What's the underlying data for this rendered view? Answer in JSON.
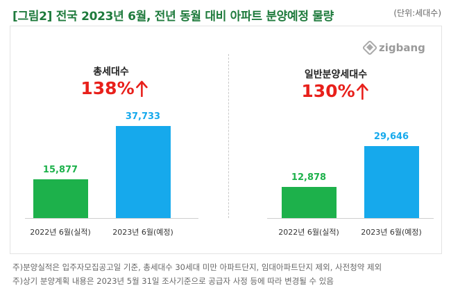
{
  "header": {
    "title": "[그림2] 전국 2023년 6월, 전년 동월 대비 아파트 분양예정 물량",
    "unit": "(단위:세대수)"
  },
  "brand": {
    "name": "zigbang",
    "icon": "zigbang-logo-icon"
  },
  "colors": {
    "green": "#1db14b",
    "blue": "#16a9ec",
    "red": "#e8201b",
    "title": "#1e7a3c"
  },
  "chart_data": [
    {
      "type": "bar",
      "title": "총세대수",
      "change": "138%",
      "change_icon": "up-arrow-icon",
      "categories": [
        "2022년 6월(실적)",
        "2023년 6월(예정)"
      ],
      "values": [
        15877,
        37733
      ],
      "value_labels": [
        "15,877",
        "37,733"
      ],
      "colors": [
        "#1db14b",
        "#16a9ec"
      ],
      "ylim": [
        0,
        37733
      ],
      "grid": false
    },
    {
      "type": "bar",
      "title": "일반분양세대수",
      "change": "130%",
      "change_icon": "up-arrow-icon",
      "categories": [
        "2022년 6월(실적)",
        "2023년 6월(예정)"
      ],
      "values": [
        12878,
        29646
      ],
      "value_labels": [
        "12,878",
        "29,646"
      ],
      "colors": [
        "#1db14b",
        "#16a9ec"
      ],
      "ylim": [
        0,
        37733
      ],
      "grid": false
    }
  ],
  "footnotes": [
    "주)분양실적은 입주자모집공고일 기준, 총세대수 30세대 미만 아파트단지, 임대아파트단지 제외, 사전청약 제외",
    "주)상기 분양계획 내용은 2023년 5월 31일 조사기준으로 공급자 사정 등에 따라 변경될 수 있음"
  ]
}
